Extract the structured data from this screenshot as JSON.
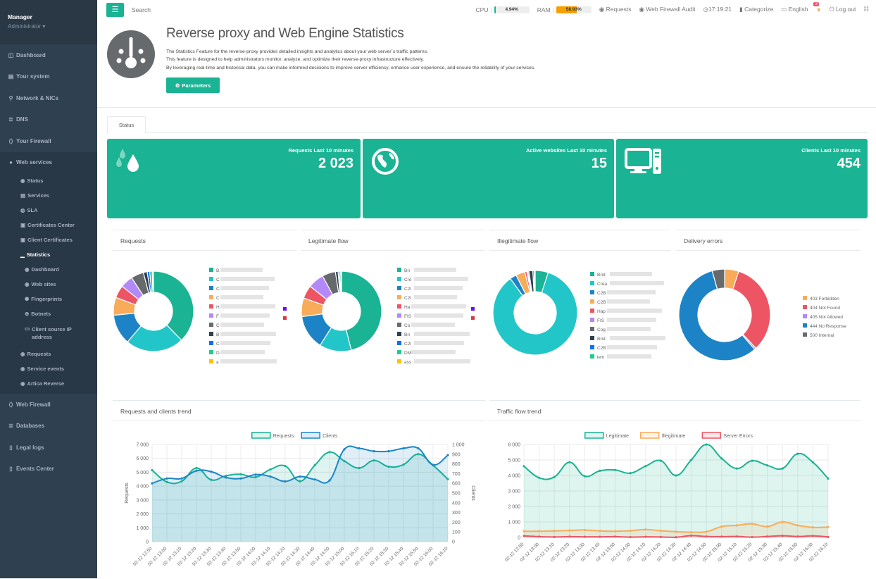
{
  "sidebar": {
    "user_name": "Manager",
    "user_role": "Administrator ▾",
    "items": [
      {
        "label": "Dashboard",
        "icon": "dashboard-icon"
      },
      {
        "label": "Your system",
        "icon": "server-icon"
      },
      {
        "label": "Network & NICs",
        "icon": "network-icon"
      },
      {
        "label": "DNS",
        "icon": "database-icon"
      },
      {
        "label": "Your Firewall",
        "icon": "firewall-icon"
      },
      {
        "label": "Web services",
        "icon": "globe-icon"
      }
    ],
    "web_services_sub": [
      {
        "label": "Status"
      },
      {
        "label": "Services"
      },
      {
        "label": "SLA"
      },
      {
        "label": "Certificates Center"
      },
      {
        "label": "Client Certificates"
      },
      {
        "label": "Statistics"
      }
    ],
    "statistics_sub": [
      {
        "label": "Dashboard"
      },
      {
        "label": "Web sites"
      },
      {
        "label": "Fingerprints"
      },
      {
        "label": "Botnets"
      },
      {
        "label": "Client source IP address"
      }
    ],
    "web_services_sub2": [
      {
        "label": "Requests"
      },
      {
        "label": "Service events"
      },
      {
        "label": "Artica Reverse"
      }
    ],
    "items_after": [
      {
        "label": "Web Firewall"
      },
      {
        "label": "Databases"
      },
      {
        "label": "Legal logs"
      },
      {
        "label": "Events Center"
      }
    ]
  },
  "topbar": {
    "search_placeholder": "Search",
    "cpu_label": "CPU",
    "cpu_value": "4.94%",
    "cpu_percent": 4.94,
    "ram_label": "RAM",
    "ram_value": "58.93%",
    "ram_percent": 58.93,
    "requests": "Requests",
    "waf_audit": "Web Firewall Audit",
    "clock": "17:19:21",
    "categorize": "Categorize",
    "language": "English",
    "notifications": "3",
    "logout": "Log out",
    "colors": {
      "accent": "#1ab394",
      "cpu": "#1ab394",
      "ram": "#f8ac59"
    }
  },
  "header": {
    "title": "Reverse proxy and Web Engine Statistics",
    "desc": [
      "The Statistics Feature for the reverse-proxy provides detailed insights and analytics about your web server`s traffic patterns.",
      "This feature is designed to help administrators monitor, analyze, and optimize their reverse-proxy infrastructure effectively.",
      "By leveraging real-time and historical data, you can make informed decisions to improve server efficiency, enhance user experience, and ensure the reliability of your services."
    ],
    "params_button": "Parameters"
  },
  "tabs": [
    {
      "label": "Status"
    }
  ],
  "cards": [
    {
      "label": "Requests Last 10 minutes",
      "value": "2 023",
      "icon": "droplets-icon"
    },
    {
      "label": "Active websites Last 10 minutes",
      "value": "15",
      "icon": "globe-icon"
    },
    {
      "label": "Clients Last 10 minutes",
      "value": "454",
      "icon": "desktop-icon"
    }
  ],
  "panels": {
    "requests": "Requests",
    "legitimate": "Legitimate flow",
    "illegitimate": "Illegitimate flow",
    "errors": "Delivery errors",
    "req_trend": "Requests and clients trend",
    "traffic_trend": "Traffic flow trend"
  },
  "chart_data": [
    {
      "type": "pie",
      "title": "Requests",
      "labels": [
        "B",
        "C",
        "C",
        "C",
        "H",
        "F",
        "C",
        "B",
        "C",
        "D",
        "a"
      ],
      "colors": [
        "#1ab394",
        "#23c6c8",
        "#1c84c6",
        "#f8ac59",
        "#ed5565",
        "#b388f7",
        "#676a6c",
        "#2f4050",
        "#0d6efd",
        "#20c997",
        "#ffc107"
      ],
      "values": [
        37,
        23,
        12,
        7,
        5,
        5,
        5,
        1.5,
        1,
        1,
        0.5
      ],
      "extra_legend_colors": [
        "#6610f2",
        "#dc3545"
      ]
    },
    {
      "type": "pie",
      "title": "Legitimate flow",
      "labels": [
        "Bri",
        "Cre",
        "C2l",
        "C2l",
        "Ha",
        "FIS",
        "Co",
        "Bri",
        "C2l",
        "DM",
        "ass"
      ],
      "colors": [
        "#1ab394",
        "#23c6c8",
        "#1c84c6",
        "#f8ac59",
        "#ed5565",
        "#b388f7",
        "#676a6c",
        "#2f4050",
        "#0d6efd",
        "#20c997",
        "#ffc107"
      ],
      "values": [
        43,
        12,
        13,
        7,
        5,
        6,
        5,
        1,
        0.5,
        0.5,
        0.3
      ],
      "extra_legend_colors": [
        "#6610f2",
        "#dc3545"
      ]
    },
    {
      "type": "pie",
      "title": "Illegitimate flow",
      "labels": [
        "Brid",
        "Crea",
        "C2B",
        "C2B",
        "Hap",
        "FIS",
        "Cog",
        "Brid",
        "C2B",
        "lem"
      ],
      "colors": [
        "#1ab394",
        "#23c6c8",
        "#1c84c6",
        "#f8ac59",
        "#ed5565",
        "#b388f7",
        "#676a6c",
        "#2f4050",
        "#0d6efd",
        "#20c997"
      ],
      "values": [
        5,
        85,
        2.5,
        3.5,
        0.8,
        0.4,
        0.4,
        1.5,
        0.5,
        0.4
      ]
    },
    {
      "type": "pie",
      "title": "Delivery errors",
      "labels": [
        "403 Forbidden",
        "404 Not Found",
        "405 Not Allowed",
        "444 No Response",
        "500 Internal"
      ],
      "colors": [
        "#f8ac59",
        "#ed5565",
        "#b388f7",
        "#1c84c6",
        "#676a6c"
      ],
      "values": [
        5,
        33,
        0.6,
        57,
        4.4
      ]
    },
    {
      "type": "line",
      "title": "Requests and clients trend",
      "x": [
        "02-12 12:50",
        "02-12 13:00",
        "02-12 13:10",
        "02-12 13:20",
        "02-12 13:30",
        "02-12 13:40",
        "02-12 13:50",
        "02-12 14:00",
        "02-12 14:10",
        "02-12 14:20",
        "02-12 14:30",
        "02-12 14:40",
        "02-12 14:50",
        "02-12 15:00",
        "02-12 15:10",
        "02-12 15:20",
        "02-12 15:30",
        "02-12 15:40",
        "02-12 15:50",
        "02-12 16:00",
        "02-12 16:10"
      ],
      "series": [
        {
          "name": "Requests",
          "axis": "left",
          "color": "#1ab394",
          "values": [
            5150,
            4300,
            4350,
            5300,
            4450,
            4750,
            4850,
            4650,
            5200,
            5450,
            4350,
            5500,
            6450,
            5800,
            5300,
            5850,
            5400,
            5550,
            6300,
            5500,
            4500
          ]
        },
        {
          "name": "Clients",
          "axis": "right",
          "color": "#1c84c6",
          "values": [
            600,
            650,
            650,
            730,
            720,
            660,
            650,
            690,
            670,
            620,
            670,
            640,
            630,
            950,
            960,
            930,
            930,
            960,
            960,
            790,
            890
          ]
        }
      ],
      "ylabel": "Requests",
      "y2label": "Clients",
      "ylim": [
        0,
        7000
      ],
      "y2lim": [
        0,
        1000
      ],
      "yticks": [
        "0",
        "1 000",
        "2 000",
        "3 000",
        "4 000",
        "5 000",
        "6 000",
        "7 000"
      ],
      "y2ticks": [
        "0",
        "100",
        "200",
        "300",
        "400",
        "500",
        "600",
        "700",
        "800",
        "900",
        "1 000"
      ],
      "legend": "top"
    },
    {
      "type": "line",
      "title": "Traffic flow trend",
      "x": [
        "02-12 12:50",
        "02-12 13:00",
        "02-12 13:10",
        "02-12 13:20",
        "02-12 13:30",
        "02-12 13:40",
        "02-12 13:50",
        "02-12 14:00",
        "02-12 14:10",
        "02-12 14:20",
        "02-12 14:30",
        "02-12 14:40",
        "02-12 14:50",
        "02-12 15:00",
        "02-12 15:10",
        "02-12 15:20",
        "02-12 15:30",
        "02-12 15:40",
        "02-12 15:50",
        "02-12 16:00",
        "02-12 16:10"
      ],
      "series": [
        {
          "name": "Legitimate",
          "color": "#1ab394",
          "values": [
            4600,
            3850,
            3900,
            4850,
            3950,
            4300,
            4350,
            4150,
            4600,
            4950,
            4000,
            5000,
            6000,
            5100,
            4450,
            4950,
            4650,
            4450,
            5400,
            4850,
            3800
          ]
        },
        {
          "name": "Illegitimate",
          "color": "#f8ac59",
          "values": [
            400,
            400,
            420,
            450,
            480,
            420,
            400,
            430,
            510,
            430,
            370,
            340,
            370,
            700,
            780,
            880,
            700,
            1000,
            780,
            650,
            670
          ]
        },
        {
          "name": "Server Errors",
          "color": "#ed5565",
          "values": [
            100,
            50,
            30,
            50,
            40,
            40,
            50,
            20,
            40,
            30,
            10,
            120,
            60,
            50,
            60,
            20,
            60,
            110,
            60,
            100,
            30
          ]
        }
      ],
      "ylim": [
        0,
        6000
      ],
      "yticks": [
        "0",
        "1 000",
        "2 000",
        "3 000",
        "4 000",
        "5 000",
        "6 000"
      ],
      "legend": "top"
    }
  ]
}
